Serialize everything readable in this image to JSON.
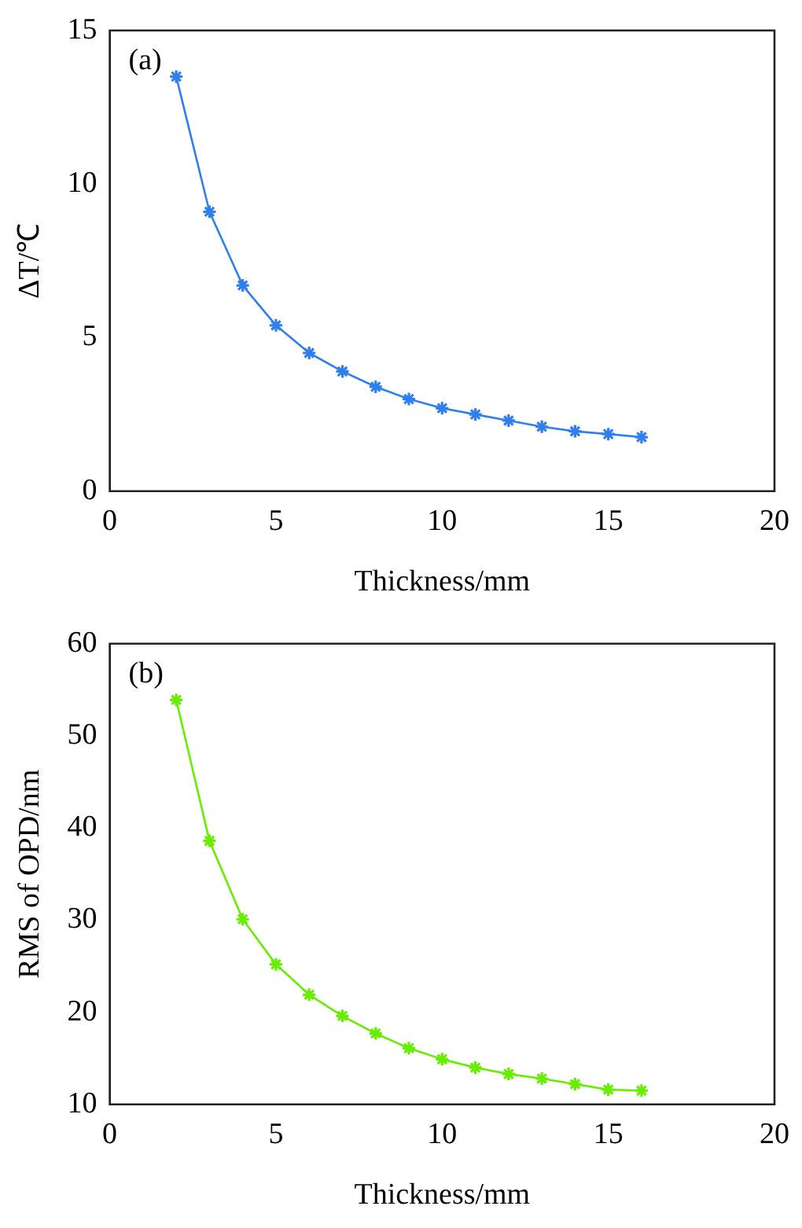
{
  "chart_data": [
    {
      "type": "line",
      "xlabel": "Thickness/mm",
      "ylabel": "ΔT/℃",
      "annotations": [
        "(a)"
      ],
      "marker": "cross",
      "grid": false,
      "x": [
        2,
        3,
        4,
        5,
        6,
        7,
        8,
        9,
        10,
        11,
        12,
        13,
        14,
        15,
        16
      ],
      "series": [
        {
          "color": "#2f7fef",
          "values": [
            13.5,
            9.1,
            6.7,
            5.4,
            4.5,
            3.9,
            3.4,
            3.0,
            2.7,
            2.5,
            2.3,
            2.1,
            1.95,
            1.86,
            1.76
          ]
        }
      ],
      "xlim": [
        0,
        20
      ],
      "xticks": [
        0,
        5,
        10,
        15,
        20
      ],
      "ylim": [
        0,
        15
      ],
      "yticks": [
        0,
        5,
        10,
        15
      ]
    },
    {
      "type": "line",
      "xlabel": "Thickness/mm",
      "ylabel": "RMS of OPD/nm",
      "annotations": [
        "(b)"
      ],
      "marker": "cross",
      "grid": false,
      "x": [
        2,
        3,
        4,
        5,
        6,
        7,
        8,
        9,
        10,
        11,
        12,
        13,
        14,
        15,
        16
      ],
      "series": [
        {
          "color": "#66ee00",
          "values": [
            53.9,
            38.6,
            30.1,
            25.2,
            21.9,
            19.6,
            17.7,
            16.1,
            14.9,
            14.0,
            13.3,
            12.8,
            12.2,
            11.6,
            11.5
          ]
        }
      ],
      "xlim": [
        0,
        20
      ],
      "xticks": [
        0,
        5,
        10,
        15,
        20
      ],
      "ylim": [
        10,
        60
      ],
      "yticks": [
        10,
        20,
        30,
        40,
        50,
        60
      ]
    }
  ]
}
